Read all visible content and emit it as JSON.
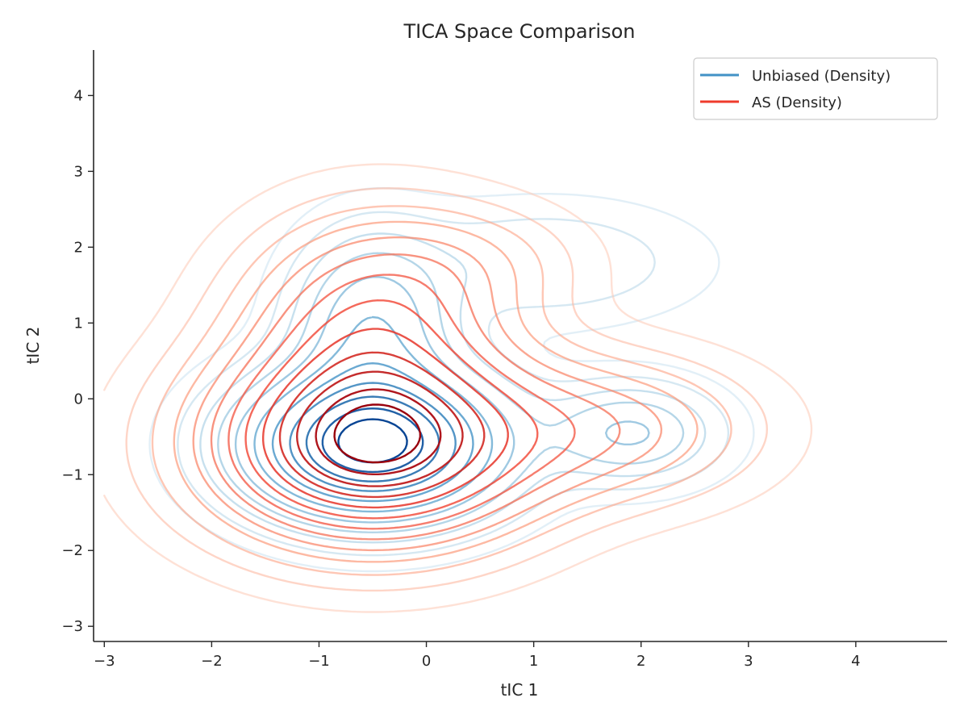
{
  "chart_data": {
    "type": "contour",
    "title": "TICA Space Comparison",
    "xlabel": "tIC 1",
    "ylabel": "tIC 2",
    "xlim": [
      -3.1,
      4.85
    ],
    "ylim": [
      -3.2,
      4.6
    ],
    "xticks": [
      -3,
      -2,
      -1,
      0,
      1,
      2,
      3,
      4
    ],
    "yticks": [
      -3,
      -2,
      -1,
      0,
      1,
      2,
      3,
      4
    ],
    "xtick_labels": [
      "−3",
      "−2",
      "−1",
      "0",
      "1",
      "2",
      "3",
      "4"
    ],
    "ytick_labels": [
      "−3",
      "−2",
      "−1",
      "0",
      "1",
      "2",
      "3",
      "4"
    ],
    "grid": false,
    "legend_position": "top-right",
    "series": [
      {
        "name": "Unbiased (Density)",
        "color": "#4292c6",
        "colormap": "Blues",
        "components": [
          {
            "cx": -0.5,
            "cy": -0.6,
            "sx": 0.72,
            "sy": 0.58,
            "w": 1.0
          },
          {
            "cx": -0.5,
            "cy": 0.9,
            "sx": 0.45,
            "sy": 0.75,
            "w": 0.3
          },
          {
            "cx": 1.9,
            "cy": -0.45,
            "sx": 0.5,
            "sy": 0.4,
            "w": 0.22
          },
          {
            "cx": 1.1,
            "cy": 1.8,
            "sx": 0.9,
            "sy": 0.5,
            "w": 0.08
          }
        ],
        "levels": [
          0.015,
          0.04,
          0.08,
          0.13,
          0.2,
          0.3,
          0.42,
          0.55,
          0.68,
          0.8,
          0.9
        ]
      },
      {
        "name": "AS (Density)",
        "color": "#ef3b2c",
        "colormap": "Reds",
        "components": [
          {
            "cx": -0.5,
            "cy": -0.6,
            "sx": 0.95,
            "sy": 0.8,
            "w": 1.0
          },
          {
            "cx": -0.5,
            "cy": 1.0,
            "sx": 0.75,
            "sy": 0.85,
            "w": 0.42
          },
          {
            "cx": 1.6,
            "cy": -0.4,
            "sx": 0.9,
            "sy": 0.6,
            "w": 0.25
          },
          {
            "cx": 0.4,
            "cy": 1.8,
            "sx": 0.7,
            "sy": 0.5,
            "w": 0.1
          }
        ],
        "levels": [
          0.02,
          0.05,
          0.09,
          0.14,
          0.2,
          0.27,
          0.35,
          0.44,
          0.54,
          0.64,
          0.74,
          0.84,
          0.92
        ]
      }
    ]
  }
}
